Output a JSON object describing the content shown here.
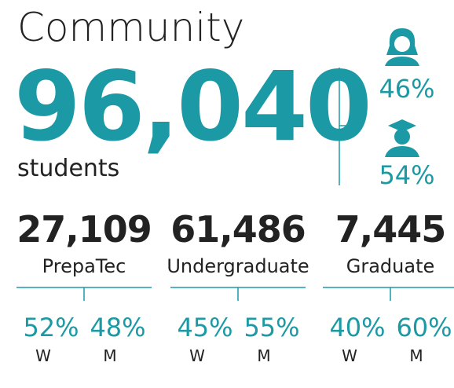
{
  "title": "Community",
  "total": {
    "value": "96,040",
    "label": "students"
  },
  "gender": [
    {
      "percent": "46%"
    },
    {
      "percent": "54%"
    }
  ],
  "groups": [
    {
      "value": "27,109",
      "label": "PrepaTec",
      "split": [
        {
          "percent": "52%",
          "label": "W"
        },
        {
          "percent": "48%",
          "label": "M"
        }
      ]
    },
    {
      "value": "61,486",
      "label": "Undergraduate",
      "split": [
        {
          "percent": "45%",
          "label": "W"
        },
        {
          "percent": "55%",
          "label": "M"
        }
      ]
    },
    {
      "value": "7,445",
      "label": "Graduate",
      "split": [
        {
          "percent": "40%",
          "label": "W"
        },
        {
          "percent": "60%",
          "label": "M"
        }
      ]
    }
  ]
}
